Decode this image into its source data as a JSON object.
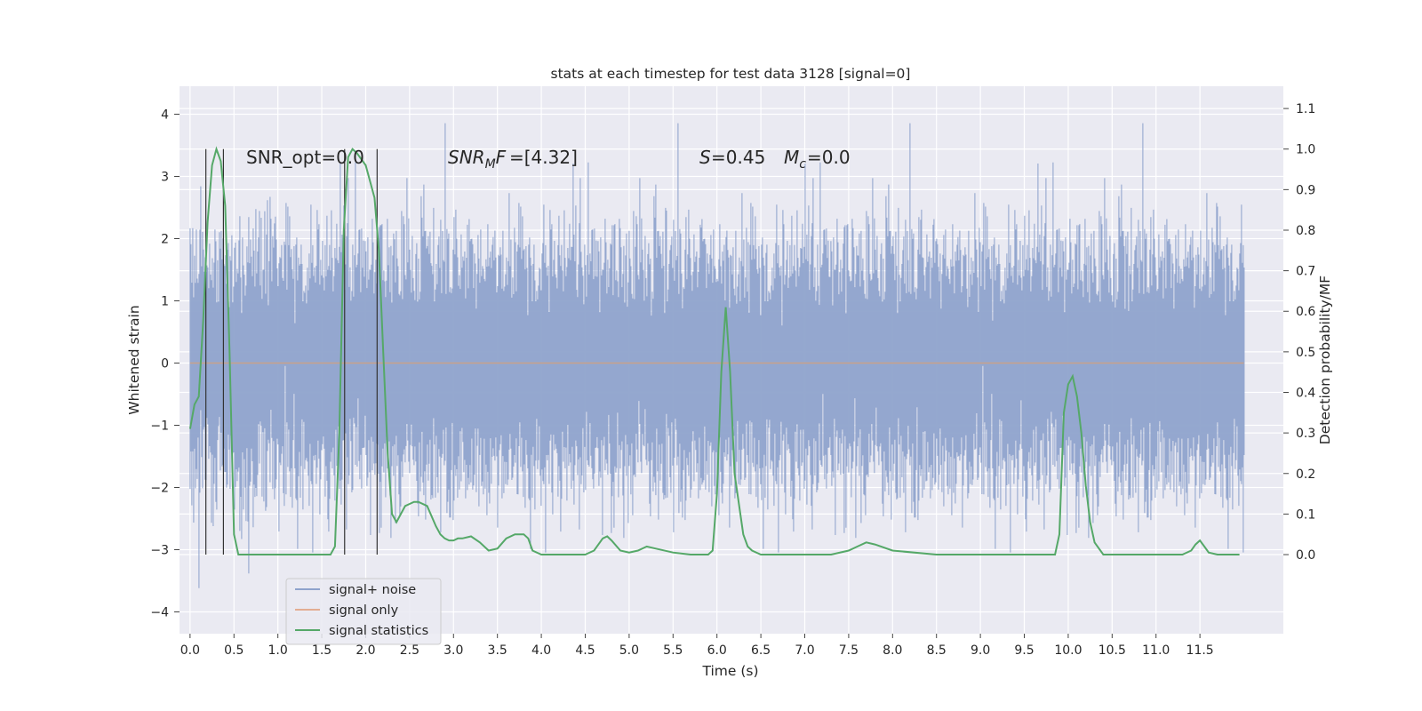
{
  "chart_data": {
    "type": "line",
    "title": "stats at each timestep for test data 3128 [signal=0]",
    "xlabel": "Time (s)",
    "ylabel_left": "Whitened strain",
    "ylabel_right": "Detection probability/MF",
    "xlim": [
      -0.12,
      12.45
    ],
    "ylim_left": [
      -4.35,
      4.45
    ],
    "ylim_right": [
      -0.195,
      1.155
    ],
    "x_ticks": [
      "0.0",
      "0.5",
      "1.0",
      "1.5",
      "2.0",
      "2.5",
      "3.0",
      "3.5",
      "4.0",
      "4.5",
      "5.0",
      "5.5",
      "6.0",
      "6.5",
      "7.0",
      "7.5",
      "8.0",
      "8.5",
      "9.0",
      "9.5",
      "10.0",
      "10.5",
      "11.0",
      "11.5"
    ],
    "y_ticks_left": [
      "−4",
      "−3",
      "−2",
      "−1",
      "0",
      "1",
      "2",
      "3",
      "4"
    ],
    "y_ticks_right": [
      "0.0",
      "0.1",
      "0.2",
      "0.3",
      "0.4",
      "0.5",
      "0.6",
      "0.7",
      "0.8",
      "0.9",
      "1.0",
      "1.1"
    ],
    "grid": true,
    "legend_position": "lower-left",
    "annotations": {
      "snr_opt": "SNR_opt=0.0",
      "snr_mf": "=[4.32]",
      "s_val": "=0.45",
      "mc_val": "=0.0"
    },
    "series": [
      {
        "name": "signal+ noise",
        "color": "#8fa3cc",
        "note_range": "x from 0.0 to 12.0 s, values approximately within [-3.9, 4.1]"
      },
      {
        "name": "signal only",
        "color": "#dd8452",
        "values_constant": 0.0
      },
      {
        "name": "signal statistics",
        "color": "#55a868",
        "axis": "right",
        "x": [
          0.0,
          0.05,
          0.1,
          0.15,
          0.2,
          0.25,
          0.3,
          0.35,
          0.4,
          0.45,
          0.5,
          0.55,
          0.6,
          0.7,
          0.8,
          1.0,
          1.2,
          1.4,
          1.6,
          1.65,
          1.7,
          1.75,
          1.8,
          1.85,
          1.9,
          2.0,
          2.1,
          2.15,
          2.2,
          2.25,
          2.3,
          2.35,
          2.4,
          2.45,
          2.5,
          2.55,
          2.6,
          2.7,
          2.8,
          2.85,
          2.9,
          2.95,
          3.0,
          3.05,
          3.1,
          3.2,
          3.3,
          3.4,
          3.5,
          3.6,
          3.7,
          3.8,
          3.85,
          3.9,
          4.0,
          4.1,
          4.2,
          4.5,
          4.6,
          4.7,
          4.75,
          4.8,
          4.9,
          5.0,
          5.1,
          5.2,
          5.3,
          5.5,
          5.7,
          5.8,
          5.9,
          5.95,
          6.0,
          6.05,
          6.1,
          6.15,
          6.2,
          6.3,
          6.35,
          6.4,
          6.5,
          6.6,
          7.0,
          7.3,
          7.5,
          7.6,
          7.7,
          7.8,
          8.0,
          8.5,
          9.0,
          9.5,
          9.8,
          9.85,
          9.9,
          9.95,
          10.0,
          10.05,
          10.1,
          10.15,
          10.2,
          10.25,
          10.3,
          10.4,
          11.0,
          11.3,
          11.4,
          11.45,
          11.5,
          11.55,
          11.6,
          11.7,
          11.95
        ],
        "values": [
          0.31,
          0.37,
          0.39,
          0.58,
          0.82,
          0.96,
          1.0,
          0.97,
          0.86,
          0.5,
          0.05,
          0.0,
          0.0,
          0.0,
          0.0,
          0.0,
          0.0,
          0.0,
          0.0,
          0.02,
          0.3,
          0.8,
          0.98,
          1.0,
          0.99,
          0.96,
          0.88,
          0.75,
          0.5,
          0.25,
          0.1,
          0.08,
          0.1,
          0.12,
          0.125,
          0.13,
          0.13,
          0.12,
          0.07,
          0.05,
          0.04,
          0.035,
          0.035,
          0.04,
          0.04,
          0.045,
          0.03,
          0.01,
          0.015,
          0.04,
          0.05,
          0.05,
          0.04,
          0.01,
          0.0,
          0.0,
          0.0,
          0.0,
          0.01,
          0.04,
          0.045,
          0.035,
          0.01,
          0.005,
          0.01,
          0.02,
          0.015,
          0.005,
          0.0,
          0.0,
          0.0,
          0.01,
          0.15,
          0.45,
          0.61,
          0.45,
          0.2,
          0.05,
          0.02,
          0.01,
          0.0,
          0.0,
          0.0,
          0.0,
          0.01,
          0.02,
          0.03,
          0.025,
          0.01,
          0.0,
          0.0,
          0.0,
          0.0,
          0.0,
          0.05,
          0.35,
          0.42,
          0.44,
          0.39,
          0.3,
          0.17,
          0.08,
          0.03,
          0.0,
          0.0,
          0.0,
          0.01,
          0.025,
          0.035,
          0.02,
          0.005,
          0.0,
          0.0
        ]
      }
    ],
    "vertical_markers_x": [
      0.18,
      0.38,
      1.76,
      2.13
    ]
  }
}
